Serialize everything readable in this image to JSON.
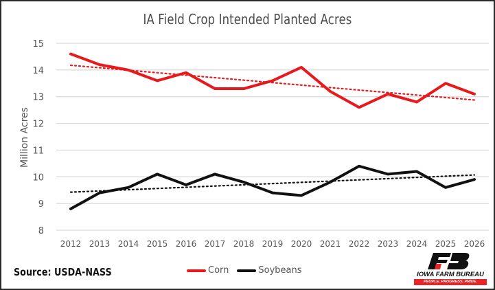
{
  "chart_data": {
    "type": "line",
    "title": "IA Field Crop Intended Planted Acres",
    "xlabel": "",
    "ylabel": "Million Acres",
    "ylim": [
      8,
      15
    ],
    "yticks": [
      "8",
      "9",
      "10",
      "11",
      "12",
      "13",
      "14",
      "15"
    ],
    "grid": true,
    "legend_position": "bottom",
    "categories": [
      "2012",
      "2013",
      "2014",
      "2015",
      "2016",
      "2017",
      "2018",
      "2019",
      "2020",
      "2021",
      "2022",
      "2023",
      "2024",
      "2025",
      "2026"
    ],
    "series": [
      {
        "name": "Corn",
        "color": "#e8191c",
        "values": [
          14.6,
          14.2,
          14.0,
          13.6,
          13.9,
          13.3,
          13.3,
          13.6,
          14.1,
          13.2,
          12.6,
          13.1,
          12.8,
          13.5,
          13.1
        ],
        "trendline": "linear-dotted"
      },
      {
        "name": "Soybeans",
        "color": "#111111",
        "values": [
          8.8,
          9.4,
          9.6,
          10.1,
          9.7,
          10.1,
          9.8,
          9.4,
          9.3,
          9.8,
          10.4,
          10.1,
          10.2,
          9.6,
          9.9
        ],
        "trendline": "linear-dotted"
      }
    ]
  },
  "footer": {
    "source": "Source: USDA-NASS"
  },
  "logo": {
    "name": "IOWA FARM BUREAU",
    "tagline": "PEOPLE. PROGRESS. PRIDE.",
    "red": "#e8262a"
  }
}
